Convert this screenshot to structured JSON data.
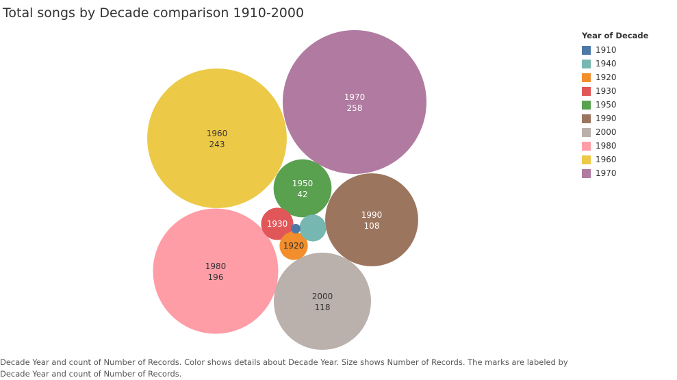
{
  "title": "Total songs by Decade comparison 1910-2000",
  "legend": {
    "title": "Year of Decade",
    "placement": "right",
    "items": [
      {
        "label": "1910",
        "color": "#4e79a7"
      },
      {
        "label": "1940",
        "color": "#76b7b2"
      },
      {
        "label": "1920",
        "color": "#f28e2b"
      },
      {
        "label": "1930",
        "color": "#e15759"
      },
      {
        "label": "1950",
        "color": "#59a14f"
      },
      {
        "label": "1990",
        "color": "#9c755f"
      },
      {
        "label": "2000",
        "color": "#bab0ac"
      },
      {
        "label": "1980",
        "color": "#ff9da7"
      },
      {
        "label": "1960",
        "color": "#edc948"
      },
      {
        "label": "1970",
        "color": "#b07aa1"
      }
    ]
  },
  "caption": "Decade Year and count of Number of Records.  Color shows details about Decade Year.  Size shows Number of Records.  The marks are labeled by Decade Year and count of Number of Records.",
  "chart_data": {
    "type": "packed-bubble",
    "size_field": "Number of Records",
    "color_field": "Year of Decade",
    "bubbles": [
      {
        "decade": "1970",
        "value": 258,
        "color": "#b07aa1",
        "label_color": "#ffffff",
        "show_label": true,
        "show_value": true
      },
      {
        "decade": "1960",
        "value": 243,
        "color": "#edc948",
        "label_color": "#333333",
        "show_label": true,
        "show_value": true
      },
      {
        "decade": "1980",
        "value": 196,
        "color": "#ff9da7",
        "label_color": "#333333",
        "show_label": true,
        "show_value": true
      },
      {
        "decade": "2000",
        "value": 118,
        "color": "#bab0ac",
        "label_color": "#333333",
        "show_label": true,
        "show_value": true
      },
      {
        "decade": "1990",
        "value": 108,
        "color": "#9c755f",
        "label_color": "#ffffff",
        "show_label": true,
        "show_value": true
      },
      {
        "decade": "1950",
        "value": 42,
        "color": "#59a14f",
        "label_color": "#ffffff",
        "show_label": true,
        "show_value": true
      },
      {
        "decade": "1930",
        "value": 13,
        "color": "#e15759",
        "label_color": "#ffffff",
        "show_label": true,
        "show_value": false
      },
      {
        "decade": "1920",
        "value": 10,
        "color": "#f28e2b",
        "label_color": "#333333",
        "show_label": true,
        "show_value": false
      },
      {
        "decade": "1940",
        "value": 9,
        "color": "#76b7b2",
        "label_color": "#333333",
        "show_label": false,
        "show_value": false
      },
      {
        "decade": "1910",
        "value": 1,
        "color": "#4e79a7",
        "label_color": "#ffffff",
        "show_label": false,
        "show_value": false
      }
    ]
  }
}
